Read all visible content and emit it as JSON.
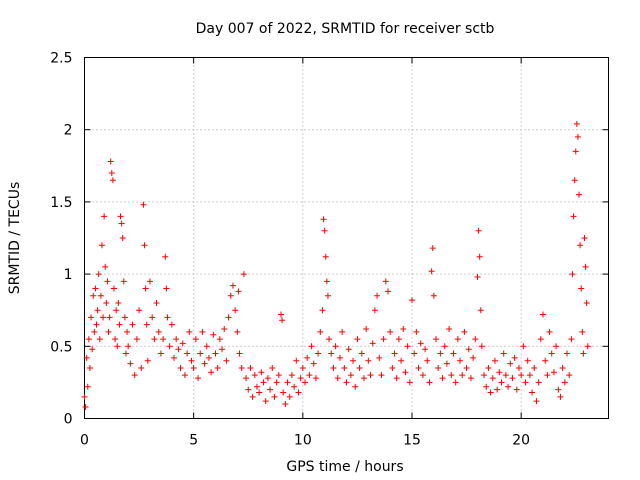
{
  "chart_data": {
    "type": "scatter",
    "title": "Day 007 of 2022, SRMTID for receiver sctb",
    "xlabel": "GPS time / hours",
    "ylabel": "SRMTID / TECUs",
    "xlim": [
      0,
      24
    ],
    "ylim": [
      0,
      2.5
    ],
    "xticks": [
      0,
      5,
      10,
      15,
      20
    ],
    "yticks": [
      0,
      0.5,
      1,
      1.5,
      2,
      2.5
    ],
    "xtick_labels": [
      "0",
      "5",
      "10",
      "15",
      "20"
    ],
    "ytick_labels": [
      "0",
      "0.5",
      "1",
      "1.5",
      "2",
      "2.5"
    ],
    "grid": true,
    "marker": "+",
    "color": "#ff0000",
    "series": [
      {
        "name": "sctb",
        "points": [
          [
            0.0,
            0.15
          ],
          [
            0.05,
            0.08
          ],
          [
            0.1,
            0.42
          ],
          [
            0.15,
            0.22
          ],
          [
            0.2,
            0.55
          ],
          [
            0.25,
            0.35
          ],
          [
            0.3,
            0.7
          ],
          [
            0.35,
            0.48
          ],
          [
            0.4,
            0.85
          ],
          [
            0.45,
            0.6
          ],
          [
            0.5,
            0.9
          ],
          [
            0.55,
            0.65
          ],
          [
            0.6,
            0.75
          ],
          [
            0.65,
            1.0
          ],
          [
            0.7,
            0.55
          ],
          [
            0.75,
            0.85
          ],
          [
            0.8,
            1.2
          ],
          [
            0.85,
            0.7
          ],
          [
            0.9,
            1.4
          ],
          [
            0.95,
            1.05
          ],
          [
            1.0,
            0.8
          ],
          [
            1.05,
            0.95
          ],
          [
            1.1,
            0.6
          ],
          [
            1.15,
            0.7
          ],
          [
            1.2,
            1.78
          ],
          [
            1.25,
            1.7
          ],
          [
            1.3,
            1.65
          ],
          [
            1.35,
            0.9
          ],
          [
            1.4,
            0.55
          ],
          [
            1.45,
            0.75
          ],
          [
            1.5,
            0.5
          ],
          [
            1.55,
            0.8
          ],
          [
            1.6,
            0.65
          ],
          [
            1.65,
            1.4
          ],
          [
            1.7,
            1.35
          ],
          [
            1.75,
            1.25
          ],
          [
            1.8,
            0.95
          ],
          [
            1.85,
            0.7
          ],
          [
            1.9,
            0.45
          ],
          [
            1.95,
            0.6
          ],
          [
            2.0,
            0.5
          ],
          [
            2.1,
            0.38
          ],
          [
            2.2,
            0.65
          ],
          [
            2.3,
            0.3
          ],
          [
            2.4,
            0.55
          ],
          [
            2.5,
            0.75
          ],
          [
            2.6,
            0.35
          ],
          [
            2.7,
            1.48
          ],
          [
            2.75,
            1.2
          ],
          [
            2.8,
            0.9
          ],
          [
            2.85,
            0.65
          ],
          [
            2.9,
            0.4
          ],
          [
            3.0,
            0.95
          ],
          [
            3.1,
            0.7
          ],
          [
            3.2,
            0.55
          ],
          [
            3.3,
            0.8
          ],
          [
            3.4,
            0.6
          ],
          [
            3.5,
            0.45
          ],
          [
            3.6,
            0.55
          ],
          [
            3.7,
            1.12
          ],
          [
            3.75,
            0.9
          ],
          [
            3.8,
            0.7
          ],
          [
            3.9,
            0.5
          ],
          [
            4.0,
            0.65
          ],
          [
            4.1,
            0.42
          ],
          [
            4.2,
            0.55
          ],
          [
            4.3,
            0.48
          ],
          [
            4.4,
            0.35
          ],
          [
            4.5,
            0.52
          ],
          [
            4.6,
            0.3
          ],
          [
            4.7,
            0.45
          ],
          [
            4.8,
            0.6
          ],
          [
            4.9,
            0.4
          ],
          [
            5.0,
            0.35
          ],
          [
            5.1,
            0.55
          ],
          [
            5.2,
            0.28
          ],
          [
            5.3,
            0.45
          ],
          [
            5.4,
            0.6
          ],
          [
            5.5,
            0.38
          ],
          [
            5.6,
            0.5
          ],
          [
            5.7,
            0.42
          ],
          [
            5.8,
            0.32
          ],
          [
            5.9,
            0.58
          ],
          [
            6.0,
            0.45
          ],
          [
            6.1,
            0.35
          ],
          [
            6.2,
            0.55
          ],
          [
            6.3,
            0.48
          ],
          [
            6.4,
            0.62
          ],
          [
            6.5,
            0.4
          ],
          [
            6.6,
            0.7
          ],
          [
            6.7,
            0.85
          ],
          [
            6.8,
            0.92
          ],
          [
            6.9,
            0.75
          ],
          [
            7.0,
            0.6
          ],
          [
            7.05,
            0.88
          ],
          [
            7.1,
            0.45
          ],
          [
            7.2,
            0.35
          ],
          [
            7.3,
            1.0
          ],
          [
            7.4,
            0.28
          ],
          [
            7.5,
            0.2
          ],
          [
            7.6,
            0.35
          ],
          [
            7.7,
            0.15
          ],
          [
            7.8,
            0.3
          ],
          [
            7.9,
            0.22
          ],
          [
            8.0,
            0.18
          ],
          [
            8.1,
            0.32
          ],
          [
            8.2,
            0.25
          ],
          [
            8.3,
            0.12
          ],
          [
            8.4,
            0.28
          ],
          [
            8.5,
            0.2
          ],
          [
            8.6,
            0.35
          ],
          [
            8.7,
            0.15
          ],
          [
            8.8,
            0.25
          ],
          [
            8.9,
            0.3
          ],
          [
            9.0,
            0.72
          ],
          [
            9.05,
            0.68
          ],
          [
            9.1,
            0.18
          ],
          [
            9.2,
            0.1
          ],
          [
            9.3,
            0.25
          ],
          [
            9.4,
            0.15
          ],
          [
            9.5,
            0.3
          ],
          [
            9.6,
            0.22
          ],
          [
            9.7,
            0.4
          ],
          [
            9.8,
            0.18
          ],
          [
            9.9,
            0.28
          ],
          [
            10.0,
            0.35
          ],
          [
            10.1,
            0.25
          ],
          [
            10.2,
            0.42
          ],
          [
            10.3,
            0.3
          ],
          [
            10.4,
            0.5
          ],
          [
            10.5,
            0.38
          ],
          [
            10.6,
            0.28
          ],
          [
            10.7,
            0.45
          ],
          [
            10.8,
            0.6
          ],
          [
            10.9,
            0.75
          ],
          [
            10.95,
            1.38
          ],
          [
            11.0,
            1.3
          ],
          [
            11.05,
            1.12
          ],
          [
            11.1,
            0.95
          ],
          [
            11.15,
            0.85
          ],
          [
            11.2,
            0.55
          ],
          [
            11.3,
            0.45
          ],
          [
            11.4,
            0.35
          ],
          [
            11.5,
            0.5
          ],
          [
            11.6,
            0.28
          ],
          [
            11.7,
            0.42
          ],
          [
            11.8,
            0.6
          ],
          [
            11.9,
            0.35
          ],
          [
            12.0,
            0.25
          ],
          [
            12.1,
            0.48
          ],
          [
            12.2,
            0.3
          ],
          [
            12.3,
            0.4
          ],
          [
            12.4,
            0.22
          ],
          [
            12.5,
            0.55
          ],
          [
            12.6,
            0.35
          ],
          [
            12.7,
            0.45
          ],
          [
            12.8,
            0.28
          ],
          [
            12.9,
            0.62
          ],
          [
            13.0,
            0.4
          ],
          [
            13.1,
            0.3
          ],
          [
            13.2,
            0.52
          ],
          [
            13.3,
            0.75
          ],
          [
            13.4,
            0.85
          ],
          [
            13.5,
            0.42
          ],
          [
            13.6,
            0.3
          ],
          [
            13.7,
            0.55
          ],
          [
            13.8,
            0.95
          ],
          [
            13.9,
            0.88
          ],
          [
            14.0,
            0.6
          ],
          [
            14.1,
            0.35
          ],
          [
            14.2,
            0.45
          ],
          [
            14.3,
            0.28
          ],
          [
            14.4,
            0.55
          ],
          [
            14.5,
            0.4
          ],
          [
            14.6,
            0.62
          ],
          [
            14.7,
            0.32
          ],
          [
            14.8,
            0.5
          ],
          [
            14.9,
            0.25
          ],
          [
            15.0,
            0.82
          ],
          [
            15.1,
            0.45
          ],
          [
            15.2,
            0.6
          ],
          [
            15.3,
            0.35
          ],
          [
            15.4,
            0.52
          ],
          [
            15.5,
            0.3
          ],
          [
            15.6,
            0.48
          ],
          [
            15.7,
            0.4
          ],
          [
            15.8,
            0.25
          ],
          [
            15.9,
            1.02
          ],
          [
            15.95,
            1.18
          ],
          [
            16.0,
            0.85
          ],
          [
            16.1,
            0.55
          ],
          [
            16.2,
            0.35
          ],
          [
            16.3,
            0.45
          ],
          [
            16.4,
            0.28
          ],
          [
            16.5,
            0.5
          ],
          [
            16.6,
            0.38
          ],
          [
            16.7,
            0.62
          ],
          [
            16.8,
            0.3
          ],
          [
            16.9,
            0.45
          ],
          [
            17.0,
            0.25
          ],
          [
            17.1,
            0.55
          ],
          [
            17.2,
            0.4
          ],
          [
            17.3,
            0.3
          ],
          [
            17.4,
            0.6
          ],
          [
            17.5,
            0.35
          ],
          [
            17.6,
            0.48
          ],
          [
            17.7,
            0.28
          ],
          [
            17.8,
            0.42
          ],
          [
            17.9,
            0.55
          ],
          [
            18.0,
            0.98
          ],
          [
            18.05,
            1.3
          ],
          [
            18.1,
            1.12
          ],
          [
            18.15,
            0.75
          ],
          [
            18.2,
            0.5
          ],
          [
            18.3,
            0.3
          ],
          [
            18.4,
            0.22
          ],
          [
            18.5,
            0.35
          ],
          [
            18.6,
            0.18
          ],
          [
            18.7,
            0.28
          ],
          [
            18.8,
            0.4
          ],
          [
            18.9,
            0.2
          ],
          [
            19.0,
            0.32
          ],
          [
            19.1,
            0.25
          ],
          [
            19.2,
            0.45
          ],
          [
            19.3,
            0.3
          ],
          [
            19.4,
            0.22
          ],
          [
            19.5,
            0.38
          ],
          [
            19.6,
            0.28
          ],
          [
            19.7,
            0.42
          ],
          [
            19.8,
            0.2
          ],
          [
            19.9,
            0.35
          ],
          [
            20.0,
            0.3
          ],
          [
            20.1,
            0.5
          ],
          [
            20.2,
            0.25
          ],
          [
            20.3,
            0.4
          ],
          [
            20.4,
            0.3
          ],
          [
            20.5,
            0.18
          ],
          [
            20.6,
            0.35
          ],
          [
            20.7,
            0.12
          ],
          [
            20.8,
            0.25
          ],
          [
            20.9,
            0.55
          ],
          [
            21.0,
            0.72
          ],
          [
            21.1,
            0.4
          ],
          [
            21.2,
            0.3
          ],
          [
            21.3,
            0.6
          ],
          [
            21.4,
            0.45
          ],
          [
            21.5,
            0.32
          ],
          [
            21.6,
            0.5
          ],
          [
            21.7,
            0.2
          ],
          [
            21.8,
            0.15
          ],
          [
            21.9,
            0.35
          ],
          [
            22.0,
            0.25
          ],
          [
            22.1,
            0.45
          ],
          [
            22.2,
            0.3
          ],
          [
            22.3,
            0.55
          ],
          [
            22.35,
            1.0
          ],
          [
            22.4,
            1.4
          ],
          [
            22.45,
            1.65
          ],
          [
            22.5,
            1.85
          ],
          [
            22.55,
            2.04
          ],
          [
            22.6,
            1.95
          ],
          [
            22.65,
            1.55
          ],
          [
            22.7,
            1.2
          ],
          [
            22.75,
            0.9
          ],
          [
            22.8,
            0.6
          ],
          [
            22.85,
            0.45
          ],
          [
            22.9,
            1.25
          ],
          [
            22.95,
            1.05
          ],
          [
            23.0,
            0.8
          ],
          [
            23.05,
            0.5
          ]
        ]
      }
    ]
  }
}
